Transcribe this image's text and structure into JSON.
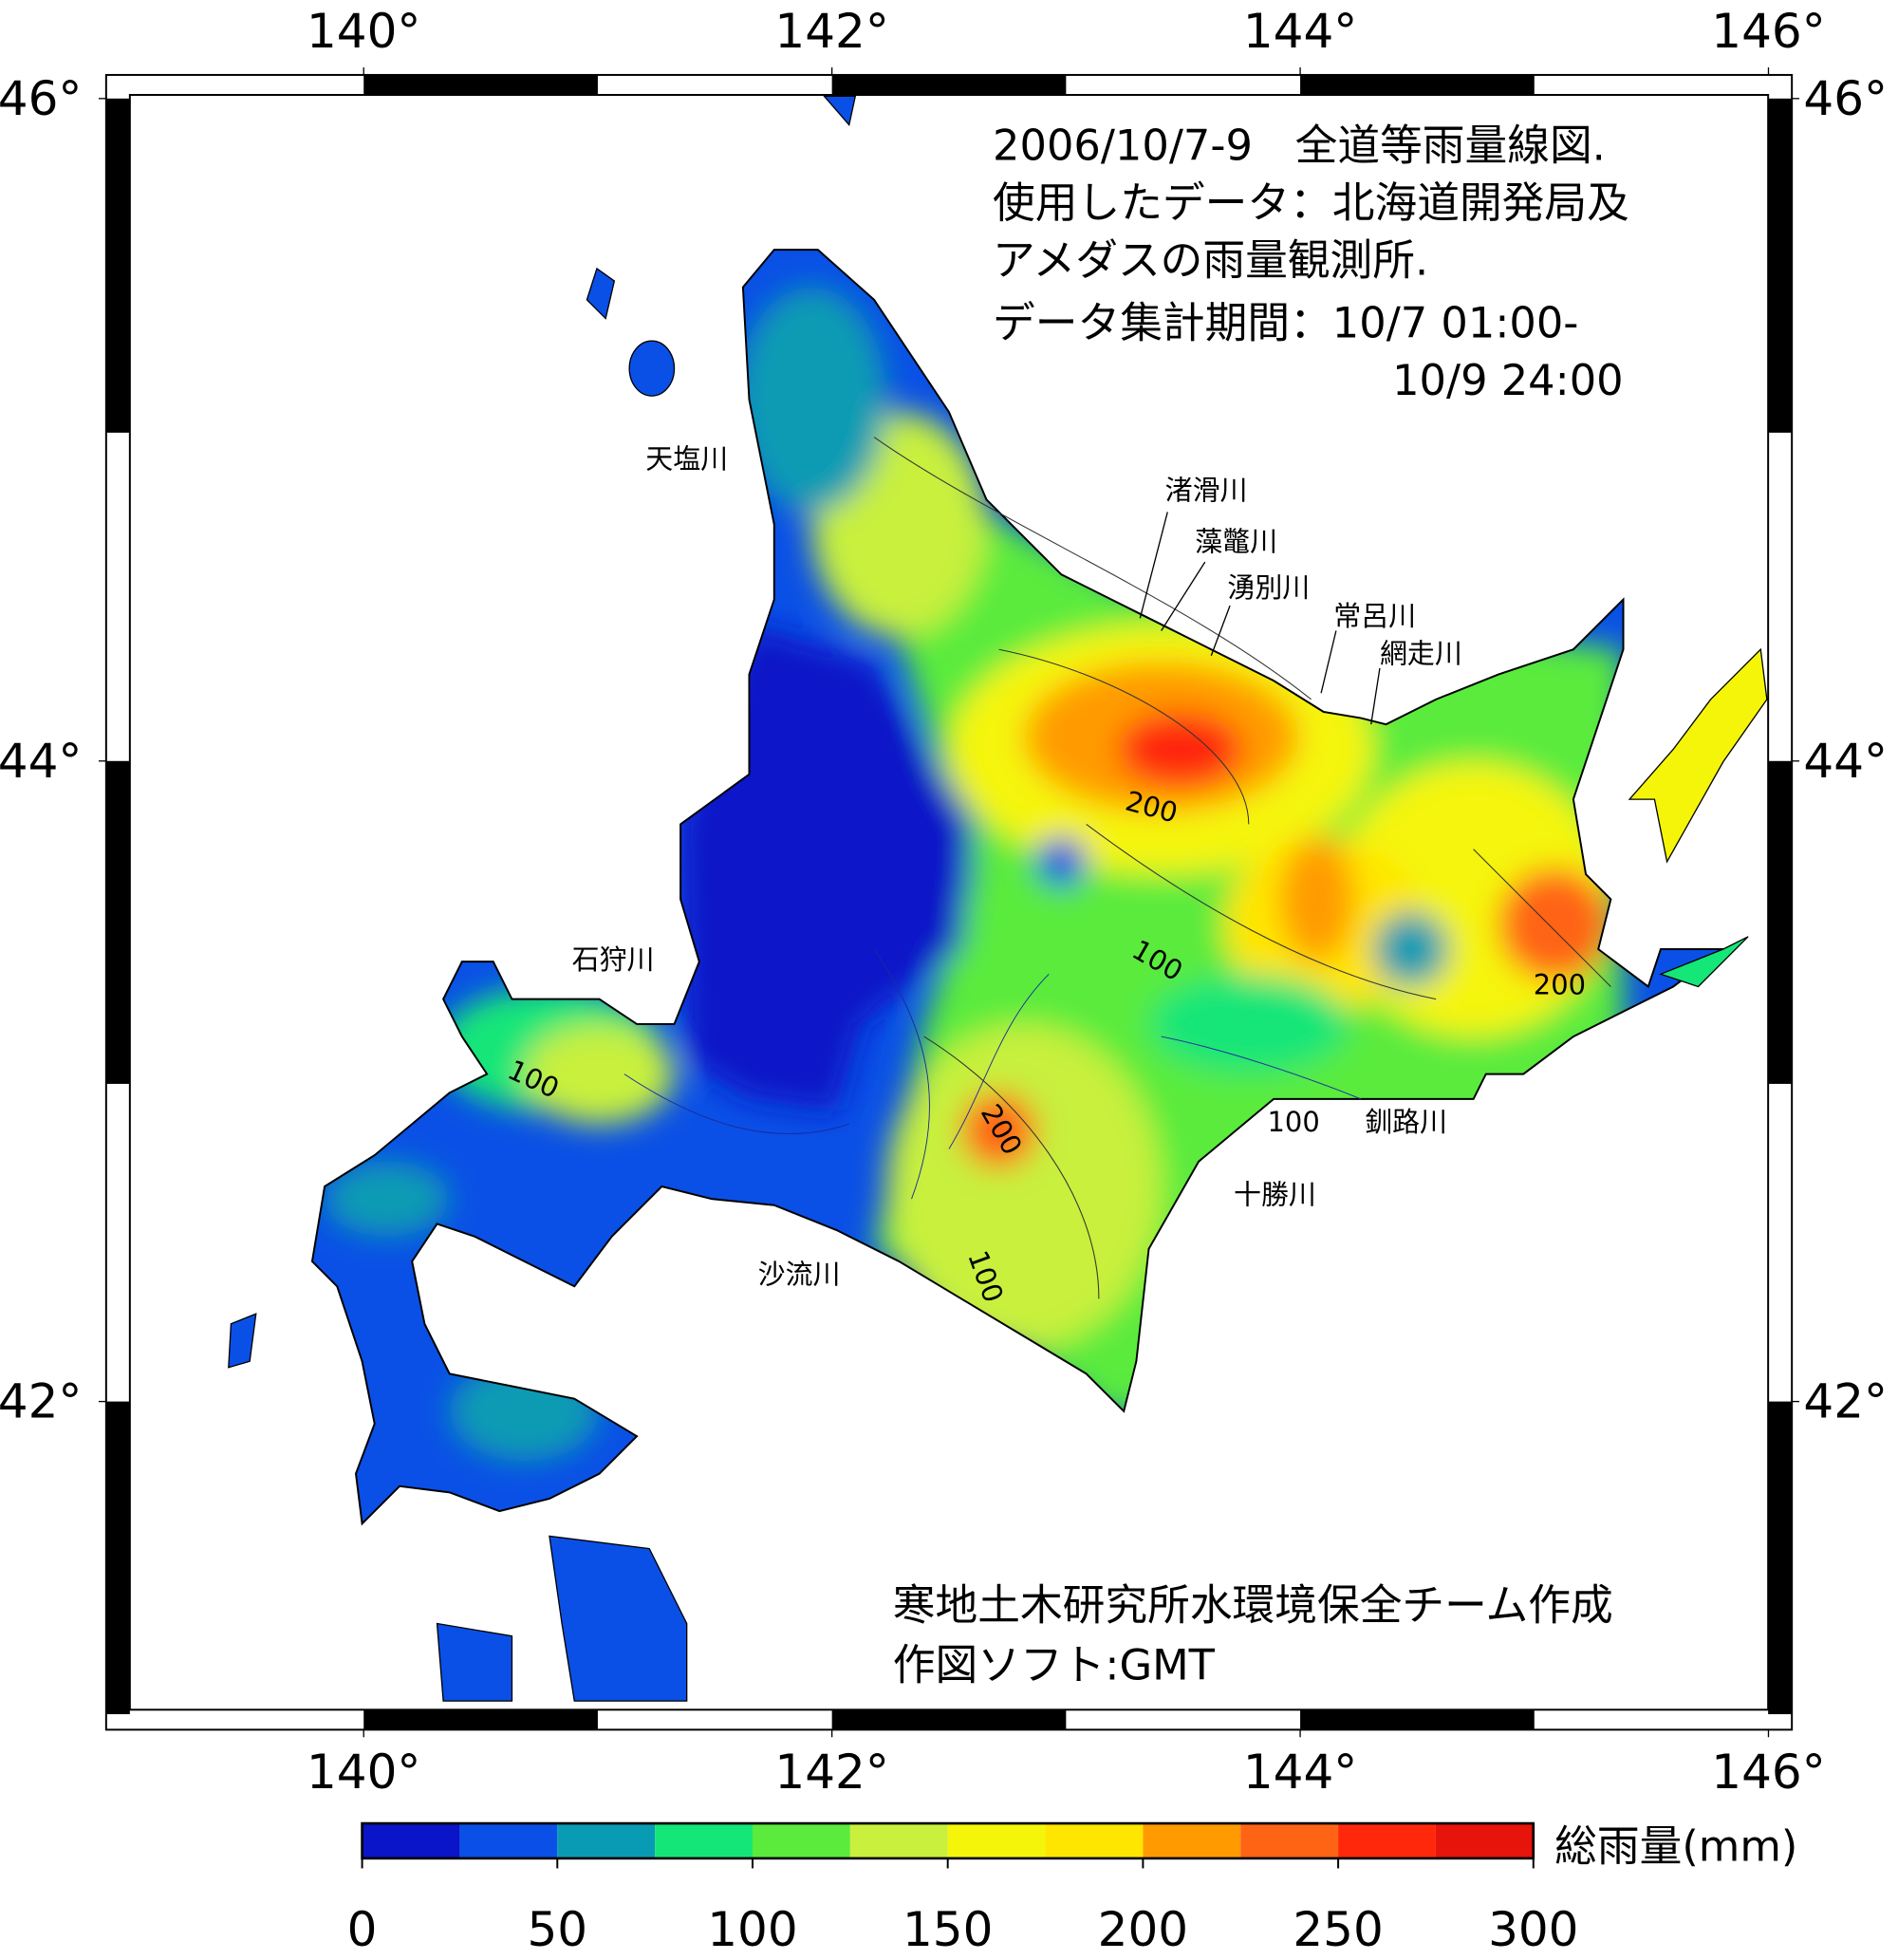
{
  "map": {
    "title_lines": [
      "2006/10/7-9　全道等雨量線図.",
      "使用したデータ：北海道開発局及",
      "アメダスの雨量観測所.",
      "データ集計期間：10/7 01:00-",
      "10/9 24:00"
    ],
    "lonlim": [
      138.9,
      146.1
    ],
    "latlim": [
      40.95,
      46.07
    ],
    "lon_ticks": [
      {
        "value": 140,
        "label": "140°"
      },
      {
        "value": 142,
        "label": "142°"
      },
      {
        "value": 144,
        "label": "144°"
      },
      {
        "value": 146,
        "label": "146°"
      }
    ],
    "lat_ticks": [
      {
        "value": 42,
        "label": "42°"
      },
      {
        "value": 44,
        "label": "44°"
      },
      {
        "value": 46,
        "label": "46°"
      }
    ],
    "rivers": [
      "天塩川",
      "渚滑川",
      "藻鼈川",
      "湧別川",
      "常呂川",
      "網走川",
      "石狩川",
      "釧路川",
      "十勝川",
      "沙流川"
    ],
    "contour_labels": [
      "100",
      "200"
    ],
    "credit": [
      "寒地土木研究所水環境保全チーム作成",
      "作図ソフト:GMT"
    ]
  },
  "colorbar": {
    "range": [
      0,
      300
    ],
    "ticks": [
      0,
      50,
      100,
      150,
      200,
      250,
      300
    ],
    "colors": [
      "#0a14c8",
      "#0a50e6",
      "#0a9bb4",
      "#14e678",
      "#5aeb3c",
      "#c8f03c",
      "#f5f50a",
      "#ffe600",
      "#ff9b00",
      "#ff6414",
      "#ff280a",
      "#e6140a"
    ],
    "label": "総雨量(mm)"
  }
}
